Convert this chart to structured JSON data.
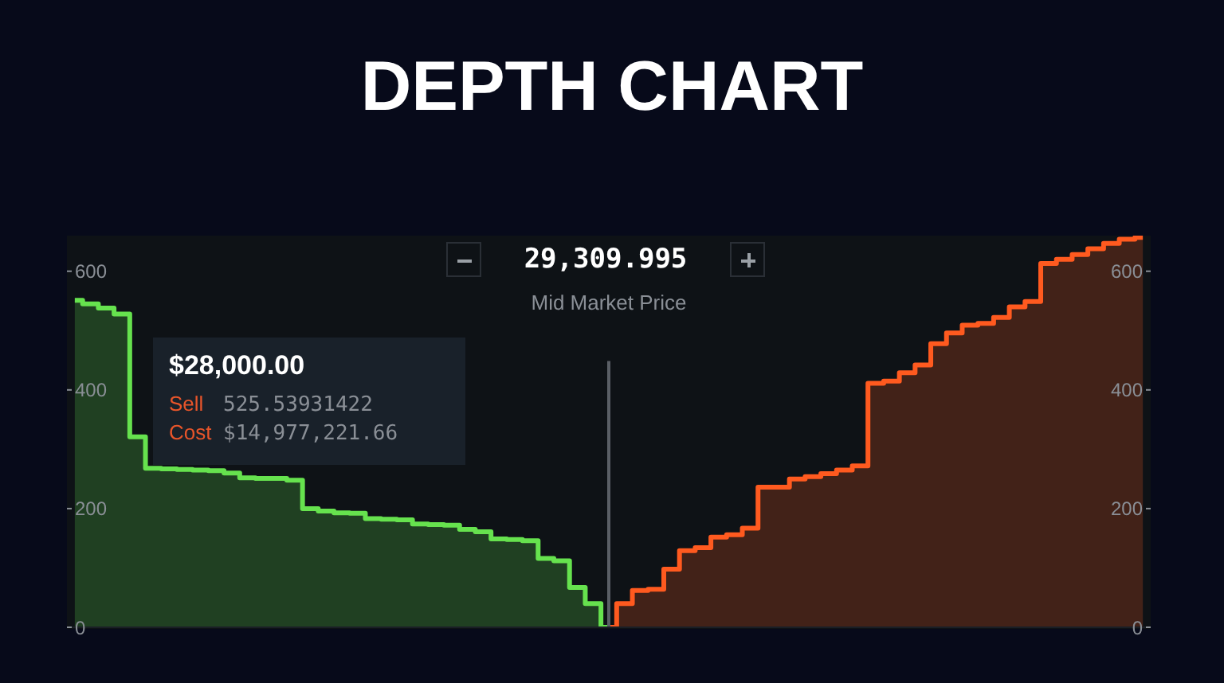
{
  "chart_data": {
    "type": "step",
    "title": "DEPTH CHART",
    "categories": [
      null,
      null,
      null,
      null,
      null,
      null,
      null,
      null,
      null,
      null,
      null,
      null,
      null,
      null,
      null,
      null,
      null,
      null,
      null,
      null,
      null,
      null,
      null,
      null,
      null,
      null,
      null,
      null,
      null,
      null,
      null,
      null,
      null,
      null,
      null,
      null,
      null,
      null,
      null,
      null,
      null,
      null,
      null,
      null,
      null,
      null,
      null,
      null,
      null,
      null,
      null,
      null,
      null,
      null,
      null,
      null,
      null,
      null,
      null,
      null,
      null,
      null,
      null,
      null,
      null,
      null,
      null,
      null,
      null
    ],
    "series": [
      {
        "color": "#66e24e",
        "values": [
          551,
          545,
          538,
          528,
          321,
          268,
          267,
          266,
          265,
          264,
          260,
          252,
          251,
          251,
          248,
          200,
          196,
          193,
          192,
          183,
          182,
          181,
          174,
          173,
          172,
          165,
          161,
          149,
          148,
          146,
          116,
          112,
          67,
          40,
          0,
          null,
          null,
          null,
          null,
          null,
          null,
          null,
          null,
          null,
          null,
          null,
          null,
          null,
          null,
          null,
          null,
          null,
          null,
          null,
          null,
          null,
          null,
          null,
          null,
          null,
          null,
          null,
          null,
          null,
          null,
          null,
          null,
          null,
          null
        ]
      },
      {
        "color": "#ff5a1f",
        "values": [
          null,
          null,
          null,
          null,
          null,
          null,
          null,
          null,
          null,
          null,
          null,
          null,
          null,
          null,
          null,
          null,
          null,
          null,
          null,
          null,
          null,
          null,
          null,
          null,
          null,
          null,
          null,
          null,
          null,
          null,
          null,
          null,
          null,
          null,
          0,
          40,
          62,
          64,
          98,
          129,
          134,
          152,
          156,
          167,
          236,
          236,
          250,
          254,
          259,
          265,
          272,
          411,
          415,
          429,
          442,
          478,
          496,
          509,
          512,
          522,
          540,
          549,
          613,
          620,
          628,
          638,
          647,
          654,
          657
        ]
      }
    ],
    "ylim": [
      0,
      660
    ],
    "yticks": [
      0,
      200,
      400,
      600
    ],
    "y2lim": [
      0,
      660
    ],
    "y2ticks": [
      0,
      200,
      400,
      600
    ],
    "tick_labels": "y",
    "ref_lines": [
      {
        "axis": "x",
        "label": "Mid Market Price",
        "color": "#5a5f66"
      }
    ],
    "annotations": [
      "29,309.995",
      "$28,000.00",
      "Sell",
      "525.53931422",
      "Cost",
      "$14,977,221.66"
    ]
  }
}
